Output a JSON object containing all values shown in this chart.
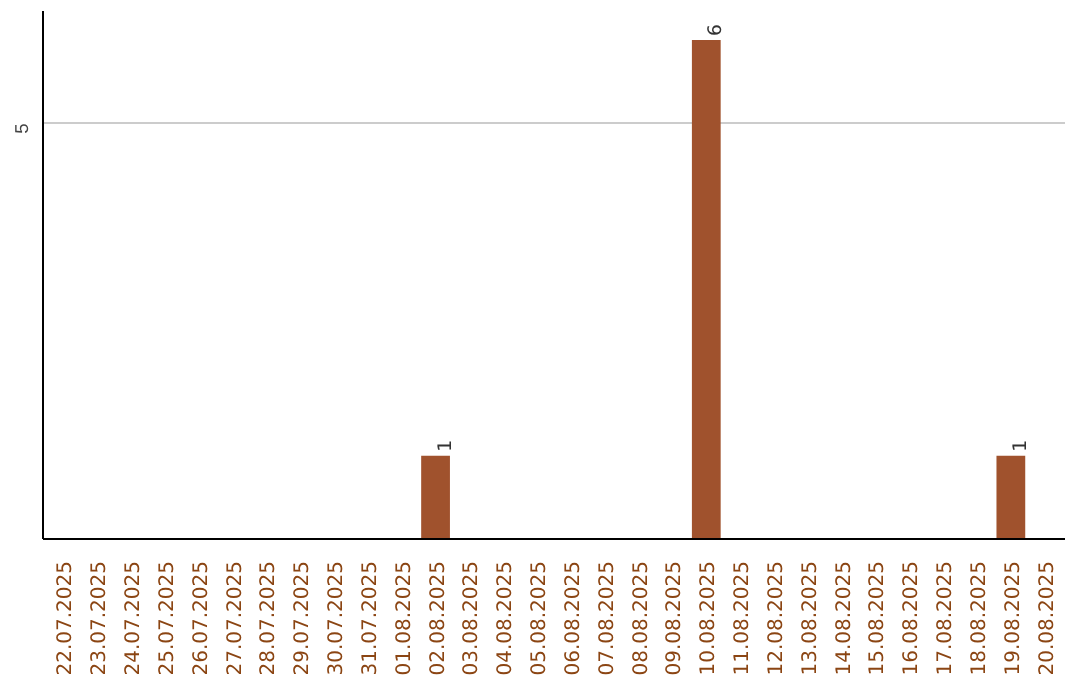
{
  "chart_data": {
    "type": "bar",
    "categories": [
      "22.07.2025",
      "23.07.2025",
      "24.07.2025",
      "25.07.2025",
      "26.07.2025",
      "27.07.2025",
      "28.07.2025",
      "29.07.2025",
      "30.07.2025",
      "31.07.2025",
      "01.08.2025",
      "02.08.2025",
      "03.08.2025",
      "04.08.2025",
      "05.08.2025",
      "06.08.2025",
      "07.08.2025",
      "08.08.2025",
      "09.08.2025",
      "10.08.2025",
      "11.08.2025",
      "12.08.2025",
      "13.08.2025",
      "14.08.2025",
      "15.08.2025",
      "16.08.2025",
      "17.08.2025",
      "18.08.2025",
      "19.08.2025",
      "20.08.2025"
    ],
    "values": [
      0,
      0,
      0,
      0,
      0,
      0,
      0,
      0,
      0,
      0,
      0,
      1,
      0,
      0,
      0,
      0,
      0,
      0,
      0,
      6,
      0,
      0,
      0,
      0,
      0,
      0,
      0,
      0,
      1,
      0
    ],
    "value_labels": [
      null,
      null,
      null,
      null,
      null,
      null,
      null,
      null,
      null,
      null,
      null,
      "1",
      null,
      null,
      null,
      null,
      null,
      null,
      null,
      "6",
      null,
      null,
      null,
      null,
      null,
      null,
      null,
      null,
      "1",
      null
    ],
    "color": "#a0522d",
    "ylim": [
      0,
      6.35
    ],
    "yticks": [
      5
    ],
    "grid": "y"
  }
}
